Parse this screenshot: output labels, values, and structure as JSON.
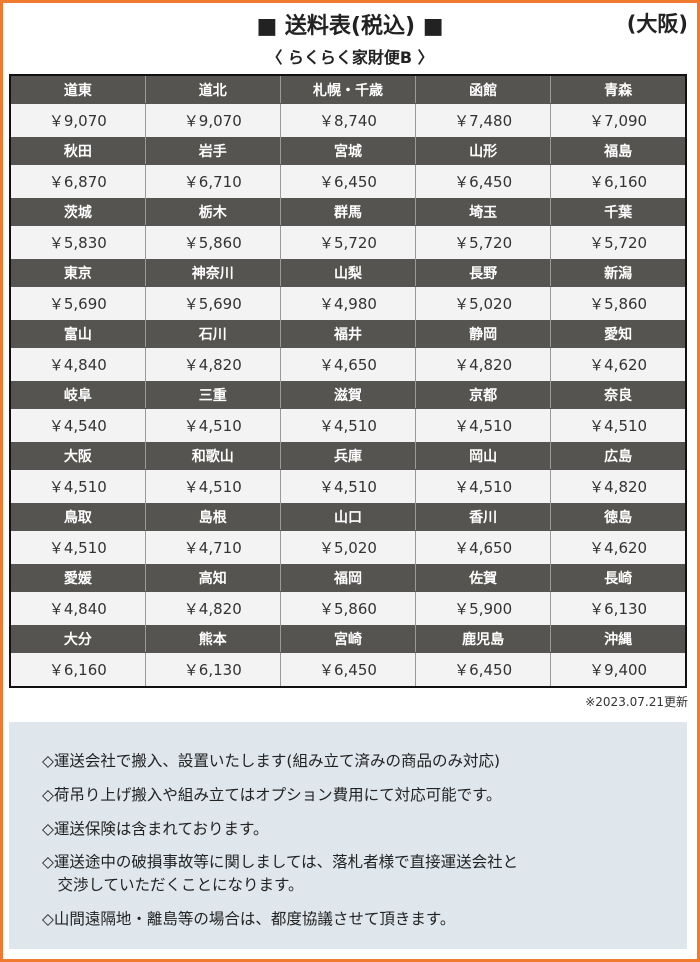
{
  "header": {
    "title": "■ 送料表(税込) ■",
    "region": "(大阪)",
    "subtitle": "〈 らくらく家財便B 〉"
  },
  "colors": {
    "border": "#ef7a30",
    "header_bg": "#555451",
    "notes_bg": "#dfe6ec"
  },
  "rows": [
    {
      "regions": [
        "道東",
        "道北",
        "札幌・千歳",
        "函館",
        "青森"
      ],
      "prices": [
        "￥9,070",
        "￥9,070",
        "￥8,740",
        "￥7,480",
        "￥7,090"
      ]
    },
    {
      "regions": [
        "秋田",
        "岩手",
        "宮城",
        "山形",
        "福島"
      ],
      "prices": [
        "￥6,870",
        "￥6,710",
        "￥6,450",
        "￥6,450",
        "￥6,160"
      ]
    },
    {
      "regions": [
        "茨城",
        "栃木",
        "群馬",
        "埼玉",
        "千葉"
      ],
      "prices": [
        "￥5,830",
        "￥5,860",
        "￥5,720",
        "￥5,720",
        "￥5,720"
      ]
    },
    {
      "regions": [
        "東京",
        "神奈川",
        "山梨",
        "長野",
        "新潟"
      ],
      "prices": [
        "￥5,690",
        "￥5,690",
        "￥4,980",
        "￥5,020",
        "￥5,860"
      ]
    },
    {
      "regions": [
        "富山",
        "石川",
        "福井",
        "静岡",
        "愛知"
      ],
      "prices": [
        "￥4,840",
        "￥4,820",
        "￥4,650",
        "￥4,820",
        "￥4,620"
      ]
    },
    {
      "regions": [
        "岐阜",
        "三重",
        "滋賀",
        "京都",
        "奈良"
      ],
      "prices": [
        "￥4,540",
        "￥4,510",
        "￥4,510",
        "￥4,510",
        "￥4,510"
      ]
    },
    {
      "regions": [
        "大阪",
        "和歌山",
        "兵庫",
        "岡山",
        "広島"
      ],
      "prices": [
        "￥4,510",
        "￥4,510",
        "￥4,510",
        "￥4,510",
        "￥4,820"
      ]
    },
    {
      "regions": [
        "鳥取",
        "島根",
        "山口",
        "香川",
        "徳島"
      ],
      "prices": [
        "￥4,510",
        "￥4,710",
        "￥5,020",
        "￥4,650",
        "￥4,620"
      ]
    },
    {
      "regions": [
        "愛媛",
        "高知",
        "福岡",
        "佐賀",
        "長崎"
      ],
      "prices": [
        "￥4,840",
        "￥4,820",
        "￥5,860",
        "￥5,900",
        "￥6,130"
      ]
    },
    {
      "regions": [
        "大分",
        "熊本",
        "宮崎",
        "鹿児島",
        "沖縄"
      ],
      "prices": [
        "￥6,160",
        "￥6,130",
        "￥6,450",
        "￥6,450",
        "￥9,400"
      ]
    }
  ],
  "updated": "※2023.07.21更新",
  "notes": [
    "◇運送会社で搬入、設置いたします(組み立て済みの商品のみ対応)",
    "◇荷吊り上げ搬入や組み立てはオプション費用にて対応可能です。",
    "◇運送保険は含まれております。",
    "◇運送途中の破損事故等に関しましては、落札者様で直接運送会社と",
    "　交渉していただくことになります。",
    "◇山間遠隔地・離島等の場合は、都度協議させて頂きます。"
  ]
}
